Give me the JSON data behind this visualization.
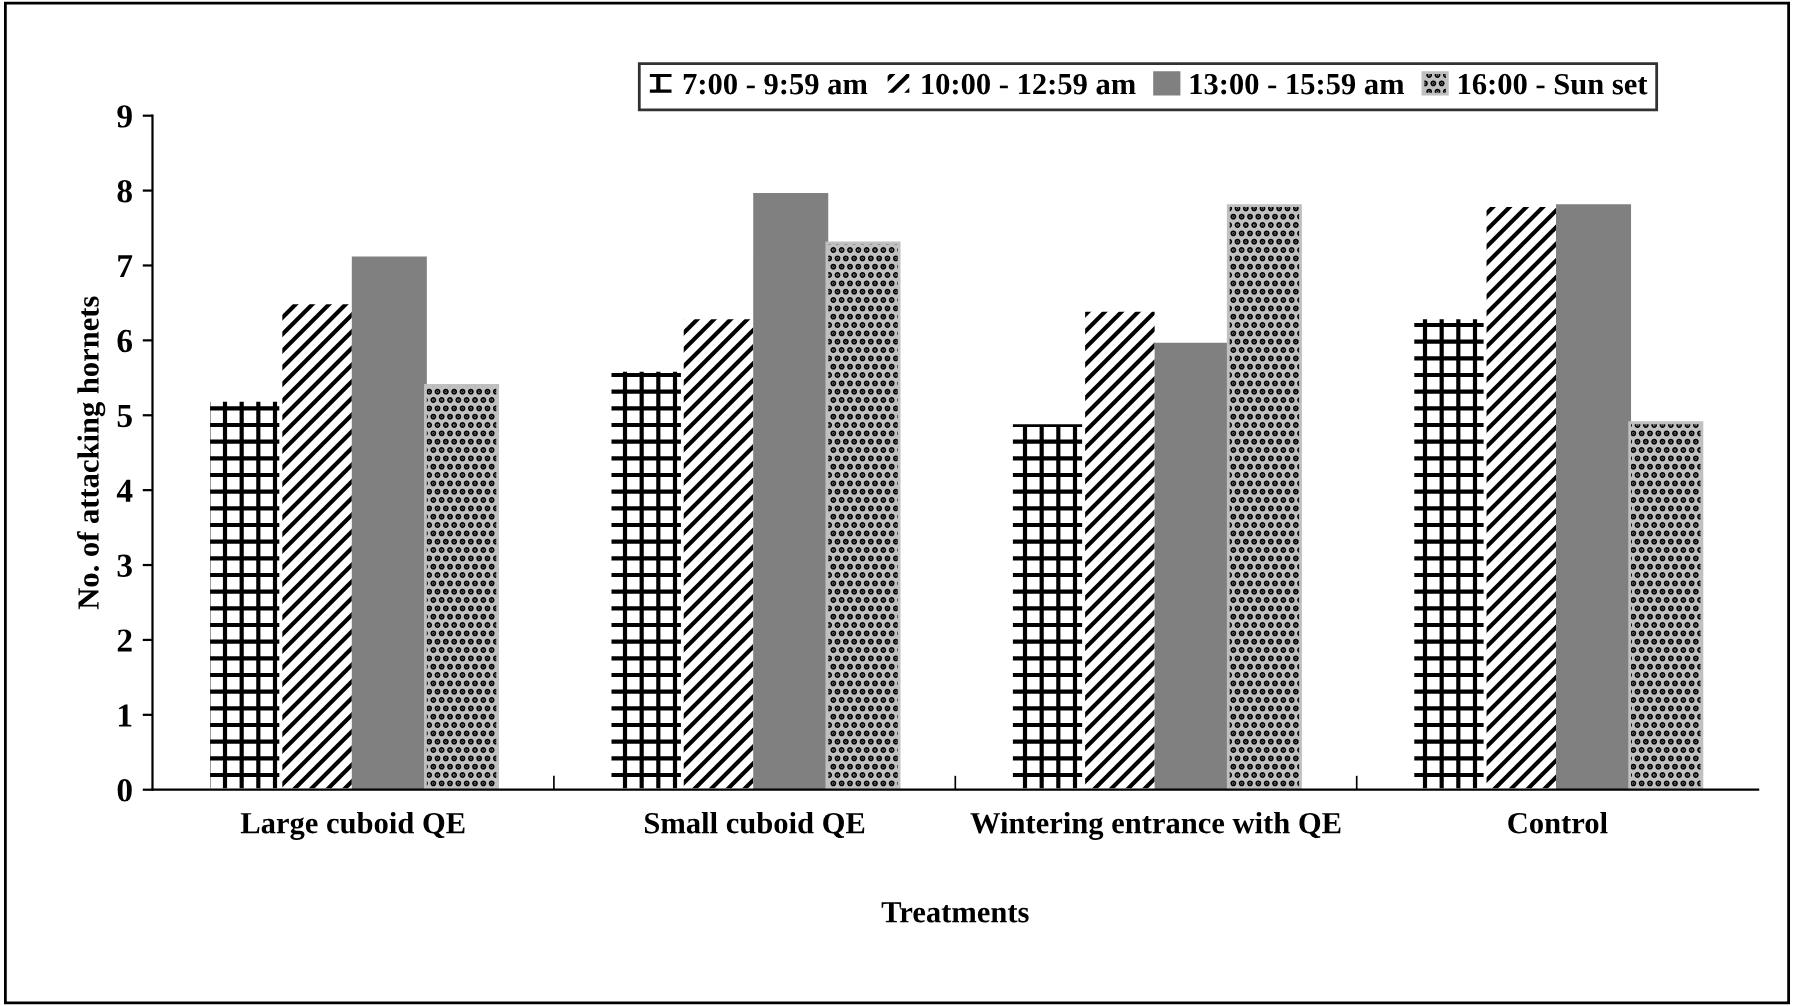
{
  "chart_data": {
    "type": "bar",
    "xlabel": "Treatments",
    "ylabel": "No. of attacking hornets",
    "categories": [
      "Large cuboid QE",
      "Small cuboid QE",
      "Wintering entrance with QE",
      "Control"
    ],
    "series": [
      {
        "name": "7:00 - 9:59 am",
        "color": "#ffffff",
        "values": [
          5.2,
          5.6,
          4.9,
          6.3
        ]
      },
      {
        "name": "10:00 - 12:59 am",
        "color": "#ffffff",
        "values": [
          6.5,
          6.3,
          6.4,
          7.8
        ]
      },
      {
        "name": "13:00 - 15:59 am",
        "color": "#808080",
        "values": [
          7.1,
          7.95,
          5.95,
          7.8
        ]
      },
      {
        "name": "16:00 - Sun set",
        "color": "#c0c0c0",
        "values": [
          5.4,
          7.3,
          7.8,
          4.9
        ]
      }
    ],
    "ylim": [
      0,
      9
    ],
    "yticks": [
      0,
      1,
      2,
      3,
      4,
      5,
      6,
      7,
      8,
      9
    ],
    "grid": false,
    "legend": "top"
  }
}
